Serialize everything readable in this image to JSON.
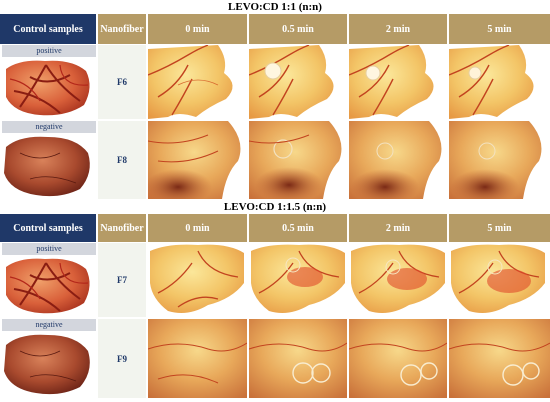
{
  "sections": [
    {
      "title": "LEVO:CD 1:1 (n:n)",
      "header": {
        "control": "Control samples",
        "nanofiber": "Nanofiber",
        "times": [
          "0 min",
          "0.5 min",
          "2 min",
          "5 min"
        ]
      },
      "rows": [
        {
          "control_label": "positive",
          "nanofiber": "F6"
        },
        {
          "control_label": "negative",
          "nanofiber": "F8"
        }
      ]
    },
    {
      "title": "LEVO:CD 1:1.5 (n:n)",
      "header": {
        "control": "Control samples",
        "nanofiber": "Nanofiber",
        "times": [
          "0 min",
          "0.5 min",
          "2 min",
          "5 min"
        ]
      },
      "rows": [
        {
          "control_label": "positive",
          "nanofiber": "F7"
        },
        {
          "control_label": "negative",
          "nanofiber": "F9"
        }
      ]
    }
  ],
  "colors": {
    "control_header": "#1f3868",
    "time_header": "#b59b66",
    "label_bar": "#d3d6dd",
    "nanofiber_cell": "#f2f4ee"
  }
}
